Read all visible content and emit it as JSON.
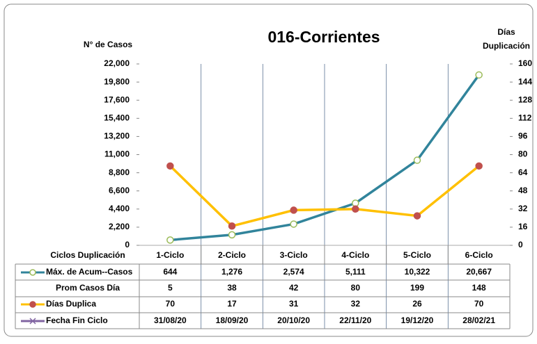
{
  "chart_data": {
    "type": "line",
    "title": "016-Corrientes",
    "ylabel": "N° de Casos",
    "y2label": [
      "Días",
      "Duplicación"
    ],
    "xlabel": "Ciclos Duplicación",
    "categories": [
      "1-Ciclo",
      "2-Ciclo",
      "3-Ciclo",
      "4-Ciclo",
      "5-Ciclo",
      "6-Ciclo"
    ],
    "ylim": [
      0,
      22000
    ],
    "yticks": [
      0,
      {
        "value": 2200,
        "label": "2,200"
      },
      {
        "value": 4400,
        "label": "4,400"
      },
      {
        "value": 6600,
        "label": "6,600"
      },
      {
        "value": 8800,
        "label": "8,800"
      },
      {
        "value": 11000,
        "label": "11,000"
      },
      {
        "value": 13200,
        "label": "13,200"
      },
      {
        "value": 15400,
        "label": "15,400"
      },
      {
        "value": 17600,
        "label": "17,600"
      },
      {
        "value": 19800,
        "label": "19,800"
      },
      {
        "value": 22000,
        "label": "22,000"
      }
    ],
    "y2lim": [
      0,
      160
    ],
    "y2ticks": [
      0,
      16,
      32,
      48,
      64,
      80,
      96,
      112,
      128,
      144,
      160
    ],
    "series": [
      {
        "name": "Máx. de Acum--Casos",
        "color": "#31849b",
        "values": [
          644,
          1276,
          2574,
          5111,
          10322,
          20667
        ],
        "value_labels": [
          "644",
          "1,276",
          "2,574",
          "5,111",
          "10,322",
          "20,667"
        ]
      },
      {
        "name": "Prom Casos Día",
        "values": [
          5,
          38,
          42,
          80,
          199,
          148
        ]
      },
      {
        "name": "Días Duplica",
        "color": "#ffc000",
        "axis": "y2",
        "values": [
          70,
          17,
          31,
          32,
          26,
          70
        ]
      },
      {
        "name": "Fecha Fin Ciclo",
        "color": "#8064a2",
        "labels": [
          "31/08/20",
          "18/09/20",
          "20/10/20",
          "22/11/20",
          "19/12/20",
          "28/02/21"
        ]
      }
    ]
  }
}
